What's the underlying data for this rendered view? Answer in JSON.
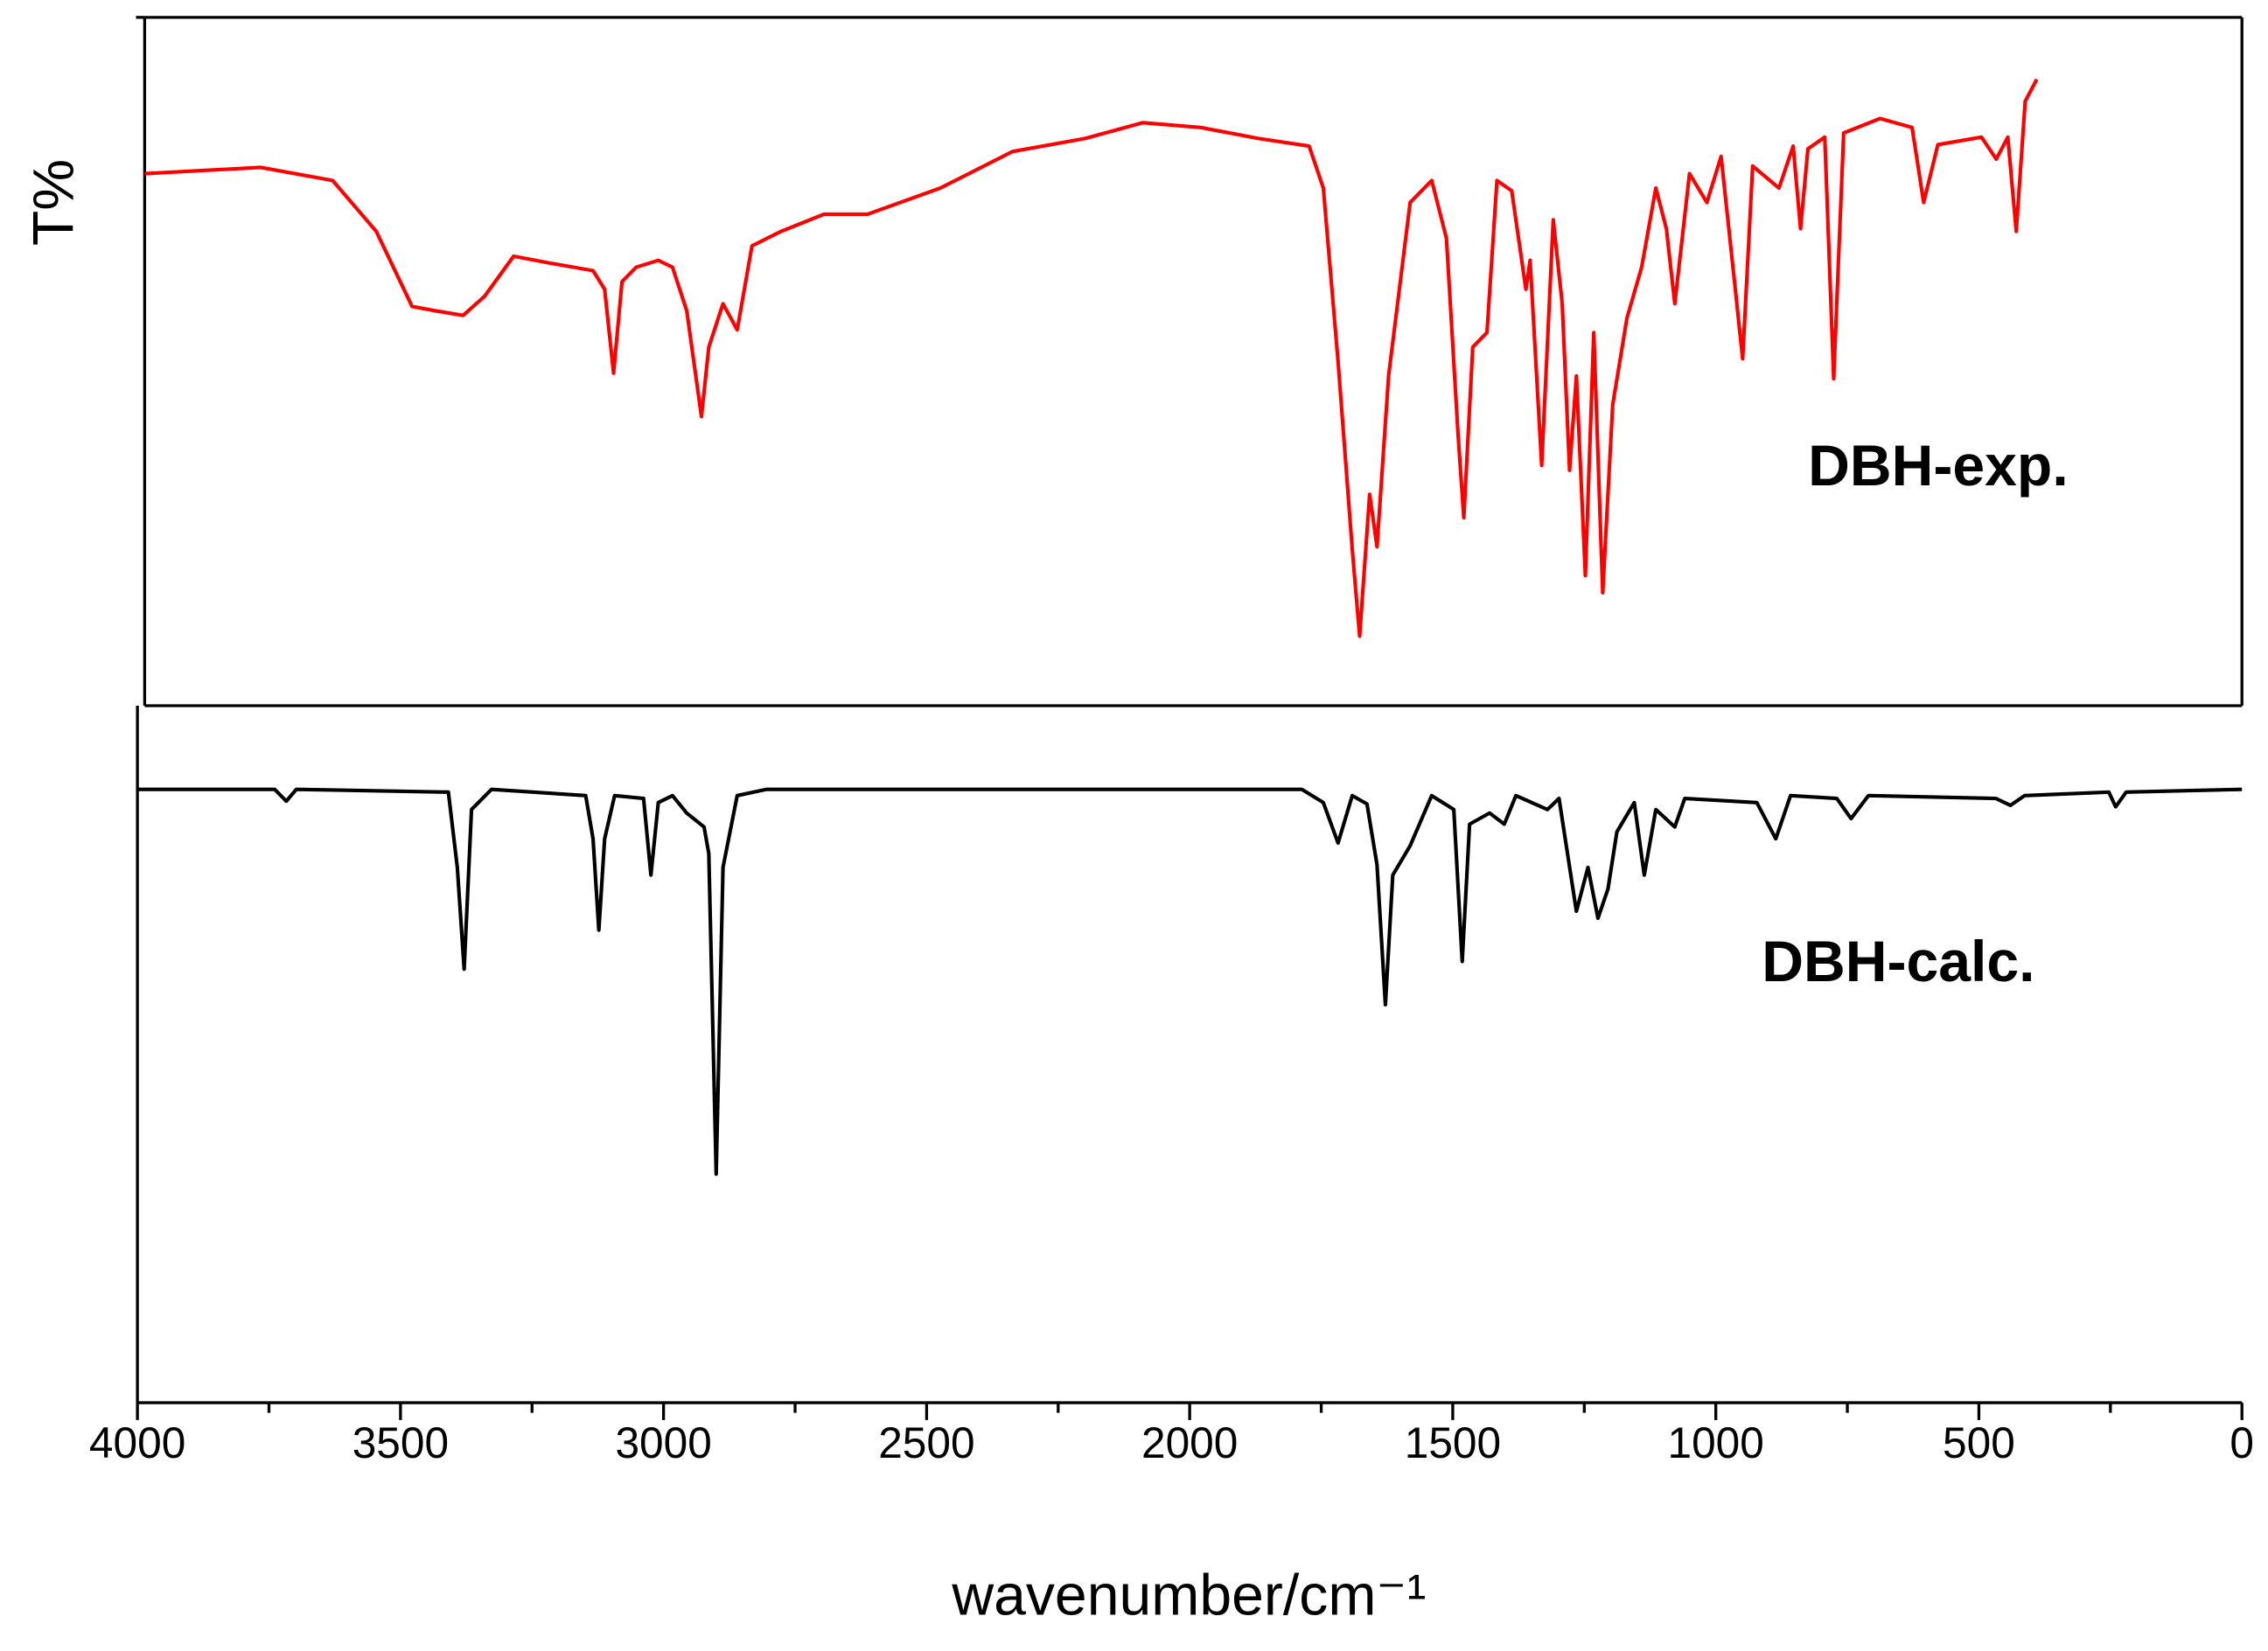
{
  "chart_data": [
    {
      "type": "line",
      "ylabel": "T%",
      "xlim": [
        4000,
        0
      ],
      "ylim": [
        0,
        100
      ],
      "x": [
        3986,
        3766,
        3629,
        3546,
        3478,
        3436,
        3381,
        3340,
        3285,
        3216,
        3134,
        3112,
        3095,
        3079,
        3052,
        3010,
        2983,
        2956,
        2928,
        2914,
        2887,
        2860,
        2832,
        2777,
        2695,
        2612,
        2474,
        2337,
        2199,
        2089,
        1979,
        1869,
        1773,
        1746,
        1718,
        1691,
        1677,
        1658,
        1644,
        1622,
        1581,
        1540,
        1512,
        1490,
        1479,
        1462,
        1435,
        1416,
        1388,
        1361,
        1353,
        1331,
        1309,
        1292,
        1278,
        1265,
        1248,
        1232,
        1215,
        1196,
        1169,
        1141,
        1114,
        1094,
        1078,
        1050,
        1017,
        990,
        963,
        949,
        930,
        880,
        853,
        839,
        825,
        793,
        776,
        757,
        688,
        627,
        605,
        578,
        495,
        467,
        445,
        429,
        412,
        390
      ],
      "series": [
        {
          "name": "DBH-exp.",
          "color": "#ff0000",
          "values": [
            77.3,
            78.2,
            76.3,
            68.9,
            58.0,
            57.4,
            56.7,
            59.5,
            65.3,
            64.3,
            63.2,
            60.5,
            48.3,
            61.6,
            63.7,
            64.7,
            63.7,
            57.4,
            42.0,
            52.1,
            58.4,
            54.6,
            66.8,
            68.9,
            71.4,
            71.4,
            75.2,
            80.5,
            82.4,
            84.7,
            84.0,
            82.4,
            81.3,
            75.2,
            50.0,
            22.7,
            10.1,
            30.7,
            23.1,
            47.9,
            73.1,
            76.3,
            67.9,
            39.5,
            27.3,
            52.1,
            54.2,
            76.3,
            74.8,
            60.5,
            64.7,
            34.9,
            70.6,
            58.4,
            34.2,
            47.9,
            18.9,
            54.2,
            16.4,
            43.7,
            56.3,
            63.7,
            75.2,
            69.3,
            58.4,
            77.3,
            73.1,
            79.8,
            60.5,
            50.4,
            78.4,
            75.2,
            81.3,
            69.3,
            80.9,
            82.6,
            47.5,
            83.2,
            85.3,
            84.0,
            73.1,
            81.5,
            82.6,
            79.4,
            82.6,
            68.9,
            87.8,
            91.0
          ]
        }
      ]
    },
    {
      "type": "line",
      "xlabel": "wavenumber/cm⁻¹",
      "xlim": [
        4000,
        0
      ],
      "ylim": [
        0,
        100
      ],
      "xticks": [
        4000,
        3500,
        3000,
        2500,
        2000,
        1500,
        1000,
        500,
        0
      ],
      "xminorticks": [
        3750,
        3250,
        2750,
        2250,
        1750,
        1250,
        750,
        250
      ],
      "x": [
        4000,
        3739,
        3717,
        3698,
        3409,
        3392,
        3379,
        3365,
        3327,
        3148,
        3134,
        3123,
        3112,
        3093,
        3038,
        3024,
        3010,
        2983,
        2956,
        2923,
        2914,
        2900,
        2887,
        2860,
        2804,
        1787,
        1746,
        1718,
        1691,
        1663,
        1644,
        1628,
        1614,
        1581,
        1540,
        1498,
        1482,
        1468,
        1430,
        1402,
        1380,
        1320,
        1298,
        1265,
        1243,
        1224,
        1205,
        1188,
        1155,
        1136,
        1114,
        1078,
        1059,
        922,
        886,
        858,
        770,
        743,
        710,
        468,
        440,
        413,
        253,
        240,
        220,
        0
      ],
      "series": [
        {
          "name": "DBH-calc.",
          "color": "#000000",
          "values": [
            88.0,
            88.0,
            86.3,
            88.0,
            87.6,
            76.8,
            62.2,
            85.1,
            88.0,
            87.1,
            80.9,
            67.8,
            80.9,
            87.1,
            86.7,
            75.7,
            86.1,
            87.1,
            84.6,
            82.6,
            78.8,
            32.8,
            76.8,
            87.1,
            88.0,
            88.0,
            86.1,
            80.3,
            87.1,
            85.9,
            77.2,
            57.1,
            75.7,
            79.9,
            87.1,
            85.1,
            63.3,
            83.0,
            84.6,
            83.0,
            87.1,
            85.1,
            86.7,
            70.5,
            76.8,
            69.5,
            73.7,
            81.9,
            86.1,
            75.7,
            85.1,
            82.6,
            86.7,
            86.1,
            80.9,
            87.1,
            86.7,
            83.8,
            87.1,
            86.7,
            85.7,
            87.1,
            87.6,
            85.5,
            87.6,
            88.0
          ]
        }
      ]
    }
  ]
}
